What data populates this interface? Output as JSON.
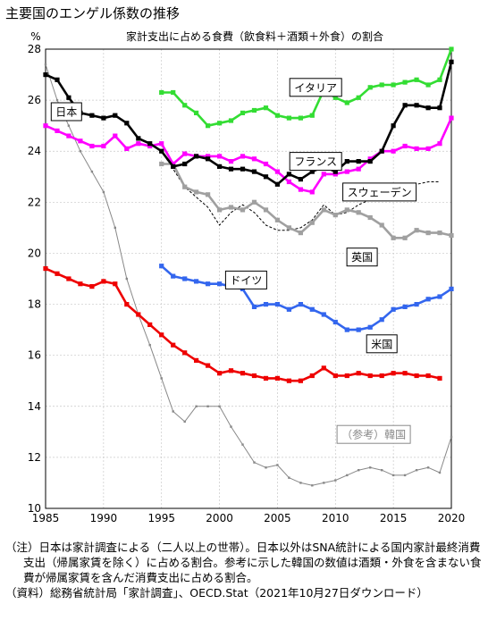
{
  "page_title": "主要国のエンゲル係数の推移",
  "chart_data": {
    "type": "line",
    "title": "家計支出に占める食費（飲食料＋酒類＋外食）の割合",
    "y_unit": "%",
    "xlim": [
      1985,
      2020
    ],
    "ylim": [
      10,
      28
    ],
    "x_ticks": [
      1985,
      1990,
      1995,
      2000,
      2005,
      2010,
      2015,
      2020
    ],
    "y_ticks": [
      10,
      12,
      14,
      16,
      18,
      20,
      22,
      24,
      26,
      28
    ],
    "grid": true,
    "series": [
      {
        "name": "日本",
        "color": "#000000",
        "label_pos": [
          1986.8,
          25.55
        ],
        "x": [
          1985,
          1986,
          1987,
          1988,
          1989,
          1990,
          1991,
          1992,
          1993,
          1994,
          1995,
          1996,
          1997,
          1998,
          1999,
          2000,
          2001,
          2002,
          2003,
          2004,
          2005,
          2006,
          2007,
          2008,
          2009,
          2010,
          2011,
          2012,
          2013,
          2014,
          2015,
          2016,
          2017,
          2018,
          2019,
          2020
        ],
        "y": [
          27.0,
          26.8,
          26.1,
          25.5,
          25.4,
          25.3,
          25.4,
          25.1,
          24.5,
          24.3,
          24.0,
          23.4,
          23.5,
          23.8,
          23.7,
          23.4,
          23.3,
          23.3,
          23.2,
          23.0,
          22.7,
          23.1,
          22.9,
          23.2,
          23.4,
          23.2,
          23.6,
          23.6,
          23.6,
          24.0,
          25.0,
          25.8,
          25.8,
          25.7,
          25.7,
          27.5
        ]
      },
      {
        "name": "イタリア",
        "color": "#33dd33",
        "label_pos": [
          2008.3,
          26.5
        ],
        "x": [
          1995,
          1996,
          1997,
          1998,
          1999,
          2000,
          2001,
          2002,
          2003,
          2004,
          2005,
          2006,
          2007,
          2008,
          2009,
          2010,
          2011,
          2012,
          2013,
          2014,
          2015,
          2016,
          2017,
          2018,
          2019,
          2020
        ],
        "y": [
          26.3,
          26.3,
          25.8,
          25.5,
          25.0,
          25.1,
          25.2,
          25.5,
          25.6,
          25.7,
          25.4,
          25.3,
          25.3,
          25.4,
          26.4,
          26.1,
          25.9,
          26.1,
          26.5,
          26.6,
          26.6,
          26.7,
          26.8,
          26.6,
          26.8,
          28.0
        ]
      },
      {
        "name": "フランス",
        "color": "#ff00ff",
        "label_pos": [
          2008.3,
          23.6
        ],
        "x": [
          1985,
          1986,
          1987,
          1988,
          1989,
          1990,
          1991,
          1992,
          1993,
          1994,
          1995,
          1996,
          1997,
          1998,
          1999,
          2000,
          2001,
          2002,
          2003,
          2004,
          2005,
          2006,
          2007,
          2008,
          2009,
          2010,
          2011,
          2012,
          2013,
          2014,
          2015,
          2016,
          2017,
          2018,
          2019,
          2020
        ],
        "y": [
          25.0,
          24.8,
          24.6,
          24.4,
          24.2,
          24.2,
          24.6,
          24.1,
          24.3,
          24.2,
          24.3,
          23.5,
          23.9,
          23.8,
          23.8,
          23.8,
          23.6,
          23.8,
          23.7,
          23.5,
          23.2,
          22.8,
          22.5,
          22.4,
          23.1,
          23.1,
          23.2,
          23.3,
          23.7,
          24.0,
          24.0,
          24.2,
          24.1,
          24.1,
          24.3,
          25.3
        ]
      },
      {
        "name": "スウェーデン",
        "color": "#000000",
        "dashed": true,
        "label_pos": [
          2013.8,
          22.4
        ],
        "x": [
          1995,
          1996,
          1997,
          1998,
          1999,
          2000,
          2001,
          2002,
          2003,
          2004,
          2005,
          2006,
          2007,
          2008,
          2009,
          2010,
          2011,
          2012,
          2013,
          2014,
          2015,
          2016,
          2017,
          2018,
          2019
        ],
        "y": [
          24.0,
          23.3,
          22.6,
          22.2,
          21.8,
          21.1,
          21.6,
          21.9,
          21.6,
          21.1,
          20.9,
          20.9,
          21.0,
          21.3,
          21.9,
          21.5,
          21.6,
          21.9,
          22.1,
          22.3,
          22.4,
          22.6,
          22.7,
          22.8,
          22.8
        ]
      },
      {
        "name": "英国",
        "color": "#a0a0a0",
        "label_pos": [
          2012.3,
          19.85
        ],
        "x": [
          1995,
          1996,
          1997,
          1998,
          1999,
          2000,
          2001,
          2002,
          2003,
          2004,
          2005,
          2006,
          2007,
          2008,
          2009,
          2010,
          2011,
          2012,
          2013,
          2014,
          2015,
          2016,
          2017,
          2018,
          2019,
          2020
        ],
        "y": [
          23.5,
          23.5,
          22.6,
          22.4,
          22.3,
          21.7,
          21.8,
          21.7,
          22.0,
          21.7,
          21.3,
          21.0,
          20.8,
          21.2,
          21.7,
          21.5,
          21.7,
          21.6,
          21.4,
          21.1,
          20.6,
          20.6,
          20.9,
          20.8,
          20.8,
          20.7
        ]
      },
      {
        "name": "ドイツ",
        "color": "#3366ee",
        "label_pos": [
          2002.3,
          18.95
        ],
        "x": [
          1995,
          1996,
          1997,
          1998,
          1999,
          2000,
          2001,
          2002,
          2003,
          2004,
          2005,
          2006,
          2007,
          2008,
          2009,
          2010,
          2011,
          2012,
          2013,
          2014,
          2015,
          2016,
          2017,
          2018,
          2019,
          2020
        ],
        "y": [
          19.5,
          19.1,
          19.0,
          18.9,
          18.8,
          18.8,
          18.7,
          18.6,
          17.9,
          18.0,
          18.0,
          17.8,
          18.0,
          17.8,
          17.6,
          17.3,
          17.0,
          17.0,
          17.1,
          17.4,
          17.8,
          17.9,
          18.0,
          18.2,
          18.3,
          18.6
        ]
      },
      {
        "name": "米国",
        "color": "#ee0000",
        "label_pos": [
          2014.0,
          16.45
        ],
        "x": [
          1985,
          1986,
          1987,
          1988,
          1989,
          1990,
          1991,
          1992,
          1993,
          1994,
          1995,
          1996,
          1997,
          1998,
          1999,
          2000,
          2001,
          2002,
          2003,
          2004,
          2005,
          2006,
          2007,
          2008,
          2009,
          2010,
          2011,
          2012,
          2013,
          2014,
          2015,
          2016,
          2017,
          2018,
          2019
        ],
        "y": [
          19.4,
          19.2,
          19.0,
          18.8,
          18.7,
          18.9,
          18.8,
          18.0,
          17.6,
          17.2,
          16.8,
          16.4,
          16.1,
          15.8,
          15.6,
          15.3,
          15.4,
          15.3,
          15.2,
          15.1,
          15.1,
          15.0,
          15.0,
          15.2,
          15.5,
          15.2,
          15.2,
          15.3,
          15.2,
          15.2,
          15.3,
          15.3,
          15.2,
          15.2,
          15.1
        ]
      },
      {
        "name": "（参考）韓国",
        "color": "#888888",
        "label_pos": [
          2013.3,
          12.9
        ],
        "x": [
          1985,
          1986,
          1987,
          1988,
          1989,
          1990,
          1991,
          1992,
          1993,
          1994,
          1995,
          1996,
          1997,
          1998,
          1999,
          2000,
          2001,
          2002,
          2003,
          2004,
          2005,
          2006,
          2007,
          2008,
          2009,
          2010,
          2011,
          2012,
          2013,
          2014,
          2015,
          2016,
          2017,
          2018,
          2019,
          2020
        ],
        "y": [
          27.4,
          26.0,
          25.0,
          24.0,
          23.2,
          22.4,
          21.0,
          19.0,
          17.6,
          16.4,
          15.1,
          13.8,
          13.4,
          14.0,
          14.0,
          14.0,
          13.2,
          12.5,
          11.8,
          11.6,
          11.7,
          11.2,
          11.0,
          10.9,
          11.0,
          11.1,
          11.3,
          11.5,
          11.6,
          11.5,
          11.3,
          11.3,
          11.5,
          11.6,
          11.4,
          12.8
        ]
      }
    ]
  },
  "notes": [
    "（注）日本は家計調査による（二人以上の世帯）。日本以外はSNA統計による国内家計最終消費支出（帰属家賃を除く）に占める割合。参考に示した韓国の数値は酒類・外食を含まない食費が帰属家賃を含んだ消費支出に占める割合。",
    "（資料）総務省統計局「家計調査」、OECD.Stat（2021年10月27日ダウンロード）"
  ]
}
